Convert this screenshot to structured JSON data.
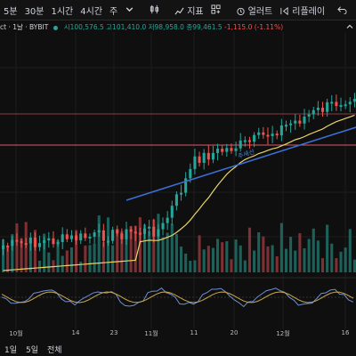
{
  "toolbar": {
    "intervals": [
      "5분",
      "30분",
      "1시간",
      "4시간",
      "주"
    ],
    "indicators_label": "지표",
    "alert_label": "얼러트",
    "replay_label": "리플레이"
  },
  "legend": {
    "symbol": "ct · 1날 · BYBIT",
    "open": "시100,576.5",
    "high": "고101,410.0",
    "low": "저98,958.0",
    "close": "종99,461.5",
    "change": "-1,115.0 (-1.11%)"
  },
  "drawings": {
    "trendline_label": "추세선"
  },
  "x_axis": [
    "10월",
    "14",
    "23",
    "11월",
    "11",
    "20",
    "12월",
    "16"
  ],
  "ranges": [
    "1일",
    "5일",
    "전체"
  ],
  "colors": {
    "up": "#26a69a",
    "down": "#ef5350",
    "trendline": "#3d6fd6",
    "ma": "#e8d36a",
    "horizontal_line": "#e05a6a"
  }
}
